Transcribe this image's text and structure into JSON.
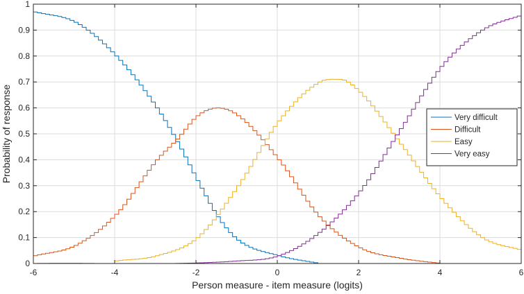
{
  "chart_data": {
    "type": "line",
    "title": "",
    "xlabel": "Person measure - item measure (logits)",
    "ylabel": "Probability of response",
    "xlim": [
      -6,
      6
    ],
    "ylim": [
      0,
      1
    ],
    "xticks": [
      "-6",
      "-4",
      "-2",
      "0",
      "2",
      "4",
      "6"
    ],
    "yticks": [
      "0",
      "0.1",
      "0.2",
      "0.3",
      "0.4",
      "0.5",
      "0.6",
      "0.7",
      "0.8",
      "0.9",
      "1"
    ],
    "grid": true,
    "legend_position": "right",
    "series": [
      {
        "name": "Very difficult",
        "color": "#0072BD",
        "x": [
          -6,
          -5,
          -4,
          -3,
          -2.5,
          -2,
          -1.5,
          -1,
          0,
          1
        ],
        "y": [
          0.97,
          0.93,
          0.8,
          0.6,
          0.47,
          0.32,
          0.18,
          0.09,
          0.03,
          0.0
        ]
      },
      {
        "name": "Difficult",
        "color": "#D95319",
        "x": [
          -6,
          -5,
          -4,
          -3,
          -2.5,
          -2,
          -1.5,
          -1,
          0,
          1,
          2,
          3,
          4
        ],
        "y": [
          0.03,
          0.07,
          0.19,
          0.4,
          0.48,
          0.57,
          0.6,
          0.57,
          0.4,
          0.18,
          0.06,
          0.02,
          0.0
        ]
      },
      {
        "name": "Easy",
        "color": "#EDB120",
        "x": [
          -4,
          -3,
          -2,
          -1,
          0,
          1,
          1.5,
          2,
          3,
          4,
          5,
          6
        ],
        "y": [
          0.01,
          0.03,
          0.1,
          0.3,
          0.55,
          0.7,
          0.71,
          0.66,
          0.46,
          0.25,
          0.1,
          0.05
        ]
      },
      {
        "name": "Very easy",
        "color": "#7E2F8E",
        "x": [
          -6,
          -1,
          0,
          1,
          2,
          3,
          4,
          5,
          6
        ],
        "y": [
          0.0,
          0.01,
          0.03,
          0.12,
          0.28,
          0.52,
          0.76,
          0.9,
          0.96
        ]
      }
    ]
  }
}
